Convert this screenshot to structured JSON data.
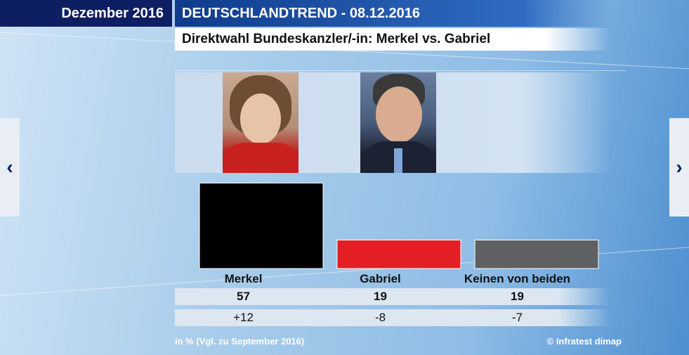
{
  "header": {
    "month": "Dezember 2016",
    "title": "DEUTSCHLANDTREND - 08.12.2016",
    "subtitle": "Direktwahl Bundeskanzler/-in: Merkel vs. Gabriel"
  },
  "chart_data": {
    "type": "bar",
    "title": "Direktwahl Bundeskanzler/-in: Merkel vs. Gabriel",
    "categories": [
      "Merkel",
      "Gabriel",
      "Keinen von beiden"
    ],
    "values": [
      57,
      19,
      19
    ],
    "changes": [
      "+12",
      "-8",
      "-7"
    ],
    "colors": [
      "#000000",
      "#e41e25",
      "#5f6062"
    ],
    "ylim": [
      0,
      60
    ],
    "grid": false
  },
  "footer": {
    "note": "in % (Vgl. zu September 2016)",
    "source": "© Infratest dimap"
  },
  "nav": {
    "prev": "‹",
    "next": "›"
  },
  "icons": {
    "prev": "chevron-left-icon",
    "next": "chevron-right-icon"
  }
}
